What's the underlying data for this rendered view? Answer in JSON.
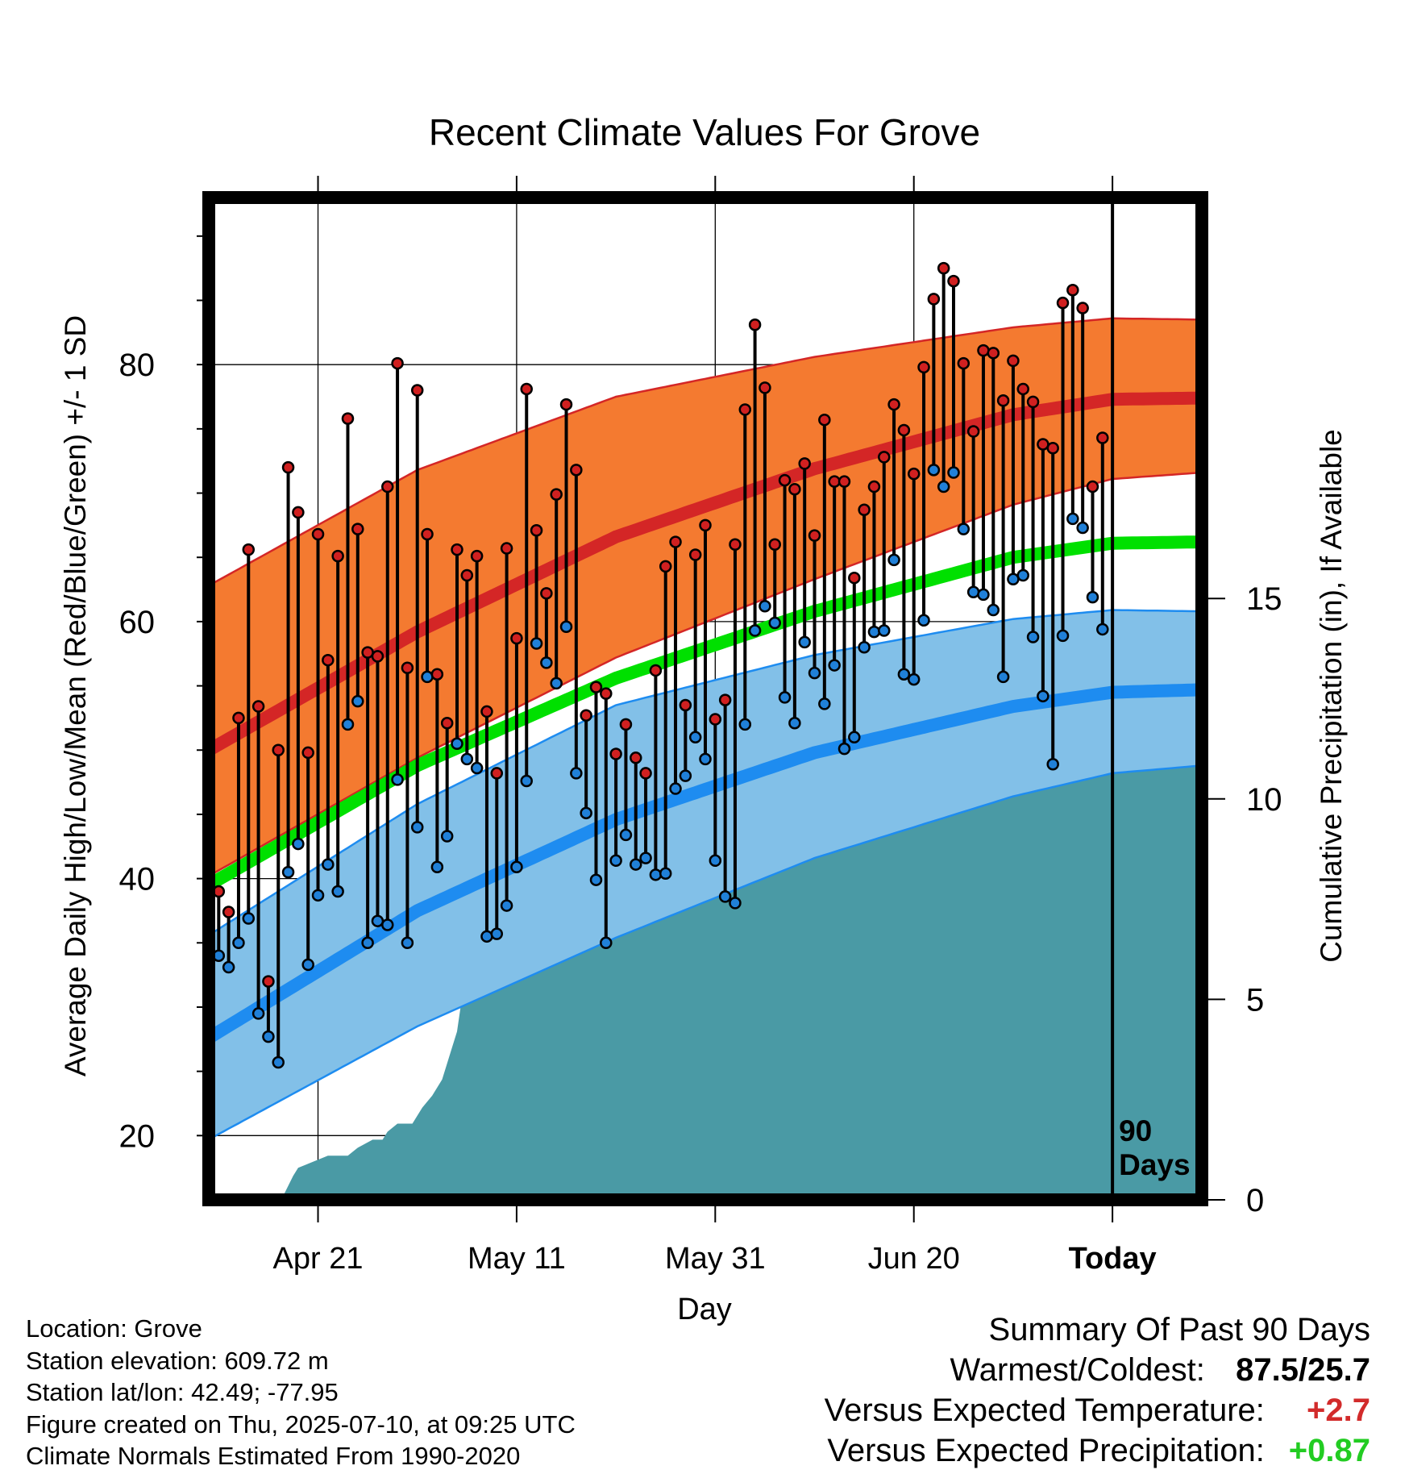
{
  "chart_data": {
    "type": "line",
    "title": "Recent Climate Values For Grove",
    "xlabel": "Day",
    "ylabel": "Average Daily High/Low/Mean (Red/Blue/Green) +/- 1 SD",
    "y2label": "Cumulative Precipitation (in), If Available",
    "x_tick_labels": [
      "Apr 21",
      "May 11",
      "May 31",
      "Jun 20",
      "Today"
    ],
    "x_tick_days": [
      10,
      30,
      50,
      70,
      90
    ],
    "x_range_days": [
      -1,
      99
    ],
    "ylim": [
      15,
      93
    ],
    "y_ticks": [
      20,
      40,
      60,
      80
    ],
    "y2lim": [
      0,
      25
    ],
    "y2_ticks": [
      0,
      5,
      10,
      15
    ],
    "today_marker_label": "90 Days",
    "normals": {
      "high_mean": [
        [
          -1,
          50
        ],
        [
          20,
          59.2
        ],
        [
          40,
          66.6
        ],
        [
          60,
          71.9
        ],
        [
          80,
          76.1
        ],
        [
          90,
          77.3
        ],
        [
          99,
          77.4
        ]
      ],
      "high_upper": [
        [
          -1,
          62.8
        ],
        [
          20,
          71.8
        ],
        [
          40,
          77.5
        ],
        [
          60,
          80.6
        ],
        [
          80,
          82.9
        ],
        [
          90,
          83.6
        ],
        [
          99,
          83.5
        ]
      ],
      "high_lower": [
        [
          -1,
          40.2
        ],
        [
          20,
          49.4
        ],
        [
          40,
          57.2
        ],
        [
          60,
          63.3
        ],
        [
          80,
          69.1
        ],
        [
          90,
          71.1
        ],
        [
          99,
          71.6
        ]
      ],
      "mean_mean": [
        [
          -1,
          39.5
        ],
        [
          20,
          48.8
        ],
        [
          40,
          55.6
        ],
        [
          60,
          60.8
        ],
        [
          80,
          65
        ],
        [
          90,
          66.1
        ],
        [
          99,
          66.2
        ]
      ],
      "low_mean": [
        [
          -1,
          27.6
        ],
        [
          20,
          37.5
        ],
        [
          40,
          44.6
        ],
        [
          60,
          49.8
        ],
        [
          80,
          53.4
        ],
        [
          90,
          54.5
        ],
        [
          99,
          54.7
        ]
      ],
      "low_upper": [
        [
          -1,
          35.6
        ],
        [
          20,
          45.8
        ],
        [
          40,
          53.5
        ],
        [
          60,
          57.4
        ],
        [
          80,
          60.2
        ],
        [
          90,
          60.9
        ],
        [
          99,
          60.8
        ]
      ],
      "low_lower": [
        [
          -1,
          19.7
        ],
        [
          20,
          28.5
        ],
        [
          40,
          35.4
        ],
        [
          60,
          41.6
        ],
        [
          80,
          46.4
        ],
        [
          90,
          48.2
        ],
        [
          99,
          48.8
        ]
      ]
    },
    "series": [
      {
        "name": "High",
        "color": "#d02020",
        "values": [
          39,
          37.4,
          52.5,
          65.6,
          53.4,
          32,
          50,
          72,
          68.5,
          49.8,
          66.8,
          57,
          65.1,
          75.8,
          67.2,
          57.6,
          57.3,
          70.5,
          80.1,
          56.4,
          78,
          66.8,
          55.9,
          52.1,
          65.6,
          63.6,
          65.1,
          53,
          48.2,
          65.7,
          58.7,
          78.1,
          67.1,
          62.2,
          69.9,
          76.9,
          71.8,
          52.7,
          54.9,
          54.4,
          49.7,
          52,
          49.4,
          48.2,
          56.2,
          64.3,
          66.2,
          53.5,
          65.2,
          67.5,
          52.4,
          53.9,
          66,
          76.5,
          83.1,
          78.2,
          66,
          71,
          70.3,
          72.3,
          66.7,
          75.7,
          70.9,
          70.9,
          63.4,
          68.7,
          70.5,
          72.8,
          76.9,
          74.9,
          71.5,
          79.8,
          85.1,
          87.5,
          86.5,
          80.1,
          74.8,
          81.1,
          80.9,
          77.2,
          80.3,
          78.1,
          77.1,
          73.8,
          73.5,
          84.8,
          85.8,
          84.4,
          70.5,
          74.3
        ]
      },
      {
        "name": "Low",
        "color": "#2080d8",
        "values": [
          34,
          33.1,
          35,
          36.9,
          29.5,
          27.7,
          25.7,
          40.5,
          42.7,
          33.3,
          38.7,
          41.1,
          39,
          52,
          53.8,
          35,
          36.7,
          36.4,
          47.7,
          35,
          44,
          55.7,
          40.9,
          43.3,
          50.5,
          49.3,
          48.6,
          35.5,
          35.7,
          37.9,
          40.9,
          47.6,
          58.3,
          56.8,
          55.2,
          59.6,
          48.2,
          45.1,
          39.9,
          35,
          41.4,
          43.4,
          41.1,
          41.6,
          40.3,
          40.4,
          47,
          48,
          51,
          49.3,
          41.4,
          38.6,
          38.1,
          52,
          59.3,
          61.2,
          59.9,
          54.1,
          52.1,
          58.4,
          56,
          53.6,
          56.6,
          50.1,
          51,
          58,
          59.2,
          59.3,
          64.8,
          55.9,
          55.5,
          60.1,
          71.8,
          70.5,
          71.6,
          67.2,
          62.3,
          62.1,
          60.9,
          55.7,
          63.3,
          63.6,
          58.8,
          54.2,
          48.9,
          58.9,
          68,
          67.3,
          61.9,
          59.4
        ]
      },
      {
        "name": "Precipitation",
        "color": "#4a9aa5",
        "x": [
          6.5,
          7.5,
          8,
          9,
          10,
          11,
          13,
          14,
          15.5,
          16.5,
          17,
          18,
          19.5,
          20.5,
          21.5,
          22.5,
          23.5,
          24,
          25,
          27,
          29,
          31,
          33,
          34,
          36.5,
          38,
          39,
          40,
          41,
          42,
          43,
          44,
          45,
          46,
          47,
          49,
          50,
          53,
          54,
          55,
          56,
          57,
          58,
          59,
          60,
          62,
          63,
          64,
          65,
          66,
          67,
          68,
          69,
          70,
          71,
          72,
          73,
          74,
          75,
          76,
          77,
          78,
          79,
          80,
          81,
          82,
          83,
          84,
          85,
          86,
          87,
          88,
          89,
          90,
          91,
          94,
          99
        ],
        "values": [
          0.1,
          0.6,
          0.8,
          0.9,
          1,
          1.1,
          1.1,
          1.3,
          1.5,
          1.5,
          1.7,
          1.9,
          1.9,
          2.3,
          2.6,
          3,
          3.8,
          4.2,
          5.9,
          6.2,
          6.2,
          6.2,
          6.3,
          6.3,
          6.5,
          6.6,
          6.6,
          7.2,
          7.4,
          7.4,
          7.7,
          7.7,
          8.1,
          8.2,
          8.2,
          8.4,
          8.4,
          8.7,
          8.7,
          9.1,
          9.5,
          9.5,
          9.5,
          9.5,
          9.8,
          10.2,
          10.5,
          10.6,
          11,
          11.4,
          11.4,
          11.7,
          11.8,
          11.8,
          11.9,
          11.9,
          12.4,
          12.6,
          12.7,
          12.7,
          12.8,
          12.8,
          12.8,
          12.8,
          12.8,
          12.8,
          12.9,
          12.9,
          12.9,
          12.9,
          12.9,
          12.9,
          13.1,
          13.3,
          13.3,
          13.3,
          13.3
        ]
      }
    ]
  },
  "info": {
    "location": "Location: Grove",
    "elevation": "Station elevation: 609.72 m",
    "latlon": "Station lat/lon: 42.49; -77.95",
    "created": "Figure created on Thu, 2025-07-10, at 09:25 UTC",
    "normals": "Climate Normals Estimated From 1990-2020"
  },
  "summary": {
    "title": "Summary Of Past 90 Days",
    "warm_cold_label": "Warmest/Coldest:",
    "warm_cold_value": "87.5/25.7",
    "temp_label": "Versus Expected Temperature:",
    "temp_value": "+2.7",
    "precip_label": "Versus Expected Precipitation:",
    "precip_value": "+0.87"
  }
}
